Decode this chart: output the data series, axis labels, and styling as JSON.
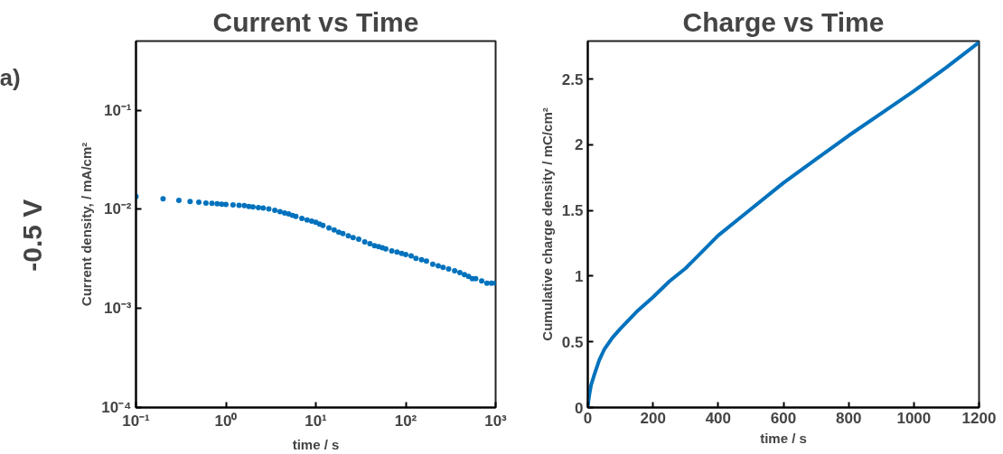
{
  "chart_data": [
    {
      "type": "scatter",
      "title": "Current vs Time",
      "xlabel": "time / s",
      "ylabel": "Current density, / mA/cm²",
      "log": "xy",
      "marker": "circle",
      "grid": false,
      "annotations": [
        "a)",
        "-0.5 V"
      ],
      "xlim": [
        0.1,
        1000
      ],
      "ylim": [
        0.0001,
        0.5
      ],
      "xticks": [
        {
          "value": 0.1,
          "label": "10⁻¹"
        },
        {
          "value": 1,
          "label": "10⁰"
        },
        {
          "value": 10,
          "label": "10¹"
        },
        {
          "value": 100,
          "label": "10²"
        },
        {
          "value": 1000,
          "label": "10³"
        }
      ],
      "yticks": [
        {
          "value": 0.0001,
          "label": "10⁻⁴"
        },
        {
          "value": 0.001,
          "label": "10⁻³"
        },
        {
          "value": 0.01,
          "label": "10⁻²"
        },
        {
          "value": 0.1,
          "label": "10⁻¹"
        }
      ],
      "series": [
        {
          "color": "#0072bd",
          "x": [
            0.1,
            0.2,
            0.3,
            0.4,
            0.5,
            0.6,
            0.7,
            0.8,
            0.9,
            1.0,
            1.2,
            1.4,
            1.6,
            1.8,
            2.0,
            2.3,
            2.6,
            3.0,
            3.5,
            4.0,
            4.5,
            5.0,
            5.5,
            6.0,
            7.0,
            8.0,
            9.0,
            10,
            11,
            12,
            14,
            16,
            18,
            20,
            23,
            26,
            30,
            35,
            40,
            45,
            50,
            55,
            60,
            70,
            80,
            90,
            100,
            115,
            130,
            150,
            170,
            200,
            230,
            260,
            300,
            350,
            400,
            450,
            500,
            550,
            600,
            700,
            800,
            900,
            1000
          ],
          "values": [
            0.0135,
            0.0128,
            0.0123,
            0.012,
            0.0118,
            0.0116,
            0.0115,
            0.0114,
            0.0113,
            0.0112,
            0.0111,
            0.011,
            0.0109,
            0.0107,
            0.0106,
            0.0104,
            0.0103,
            0.0101,
            0.0098,
            0.0095,
            0.0092,
            0.009,
            0.0087,
            0.0085,
            0.0081,
            0.0078,
            0.0076,
            0.0074,
            0.0071,
            0.0069,
            0.0065,
            0.0062,
            0.0059,
            0.0057,
            0.0054,
            0.0052,
            0.005,
            0.0047,
            0.0045,
            0.0043,
            0.0042,
            0.0041,
            0.004,
            0.0038,
            0.0037,
            0.0036,
            0.0035,
            0.0034,
            0.0032,
            0.0031,
            0.003,
            0.0028,
            0.0027,
            0.0026,
            0.0025,
            0.0024,
            0.0023,
            0.0022,
            0.0021,
            0.002,
            0.002,
            0.0019,
            0.0018,
            0.0018,
            0.0018
          ]
        }
      ]
    },
    {
      "type": "line",
      "title": "Charge vs Time",
      "xlabel": "time / s",
      "ylabel": "Cumulative charge density / mC/cm²",
      "grid": false,
      "xlim": [
        0,
        1200
      ],
      "ylim": [
        0,
        2.79
      ],
      "xticks": [
        0,
        200,
        400,
        600,
        800,
        1000,
        1200
      ],
      "yticks": [
        0,
        0.5,
        1,
        1.5,
        2,
        2.5
      ],
      "series": [
        {
          "color": "#0072bd",
          "x": [
            0,
            2,
            5,
            10,
            20,
            35,
            50,
            75,
            100,
            150,
            200,
            250,
            300,
            400,
            500,
            600,
            700,
            800,
            900,
            1000,
            1100,
            1200
          ],
          "values": [
            0,
            0.05,
            0.1,
            0.17,
            0.25,
            0.36,
            0.44,
            0.53,
            0.6,
            0.73,
            0.84,
            0.96,
            1.06,
            1.31,
            1.51,
            1.71,
            1.89,
            2.07,
            2.24,
            2.41,
            2.59,
            2.78
          ]
        }
      ]
    }
  ]
}
